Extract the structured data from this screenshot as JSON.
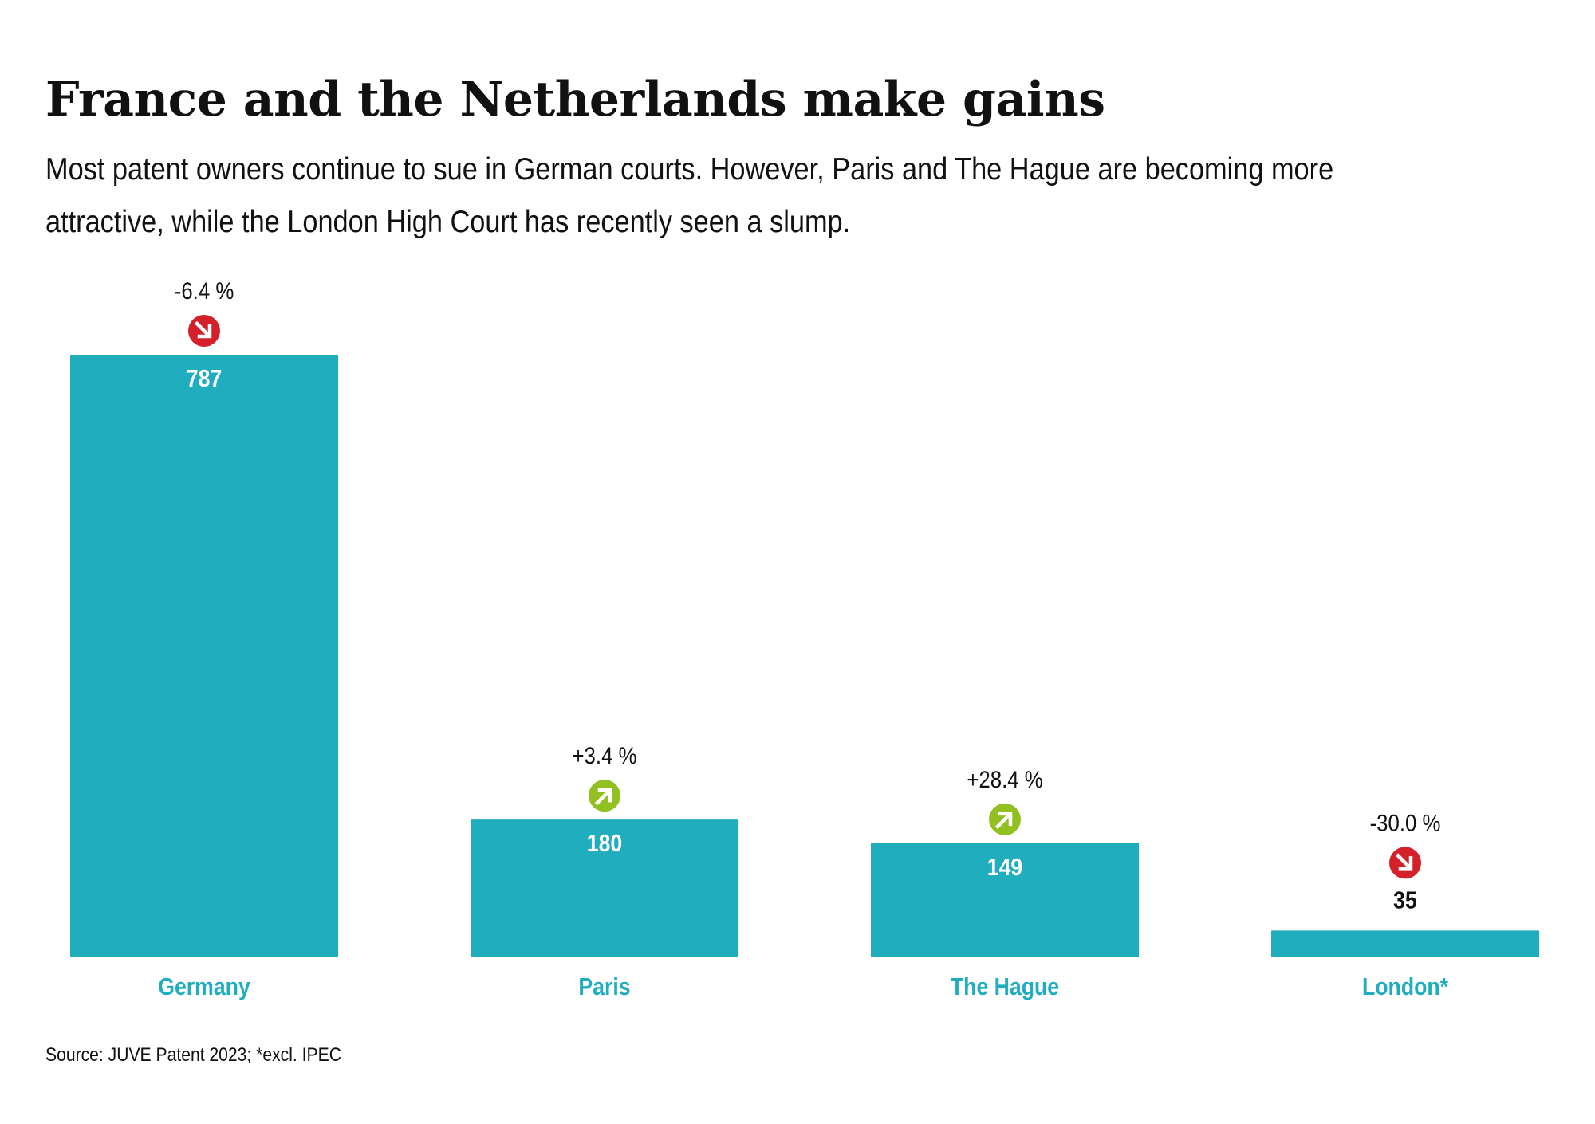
{
  "header": {
    "title": "France and the Netherlands make gains",
    "subtitle": "Most patent owners continue to sue in German courts. However, Paris and The Hague are becoming more attractive, while the London High Court has recently seen a slump."
  },
  "chart_data": {
    "type": "bar",
    "categories": [
      "Germany",
      "Paris",
      "The Hague",
      "London*"
    ],
    "values": [
      787,
      180,
      149,
      35
    ],
    "changes": [
      "-6.4 %",
      "+3.4 %",
      "+28.4 %",
      "-30.0 %"
    ],
    "trend": [
      "down",
      "up",
      "up",
      "down"
    ],
    "title": "France and the Netherlands make gains",
    "xlabel": "",
    "ylabel": "",
    "ylim": [
      0,
      787
    ],
    "grid": false,
    "legend": "none",
    "colors": {
      "bar": "#20adbd",
      "category_label": "#20adbd",
      "up": "#93c021",
      "down": "#d3202a",
      "text": "#111111",
      "value_inside": "#ffffff"
    },
    "icons": {
      "up": "arrow-up-right-icon",
      "down": "arrow-down-right-icon"
    }
  },
  "footer": {
    "source": "Source: JUVE Patent 2023; *excl. IPEC"
  }
}
